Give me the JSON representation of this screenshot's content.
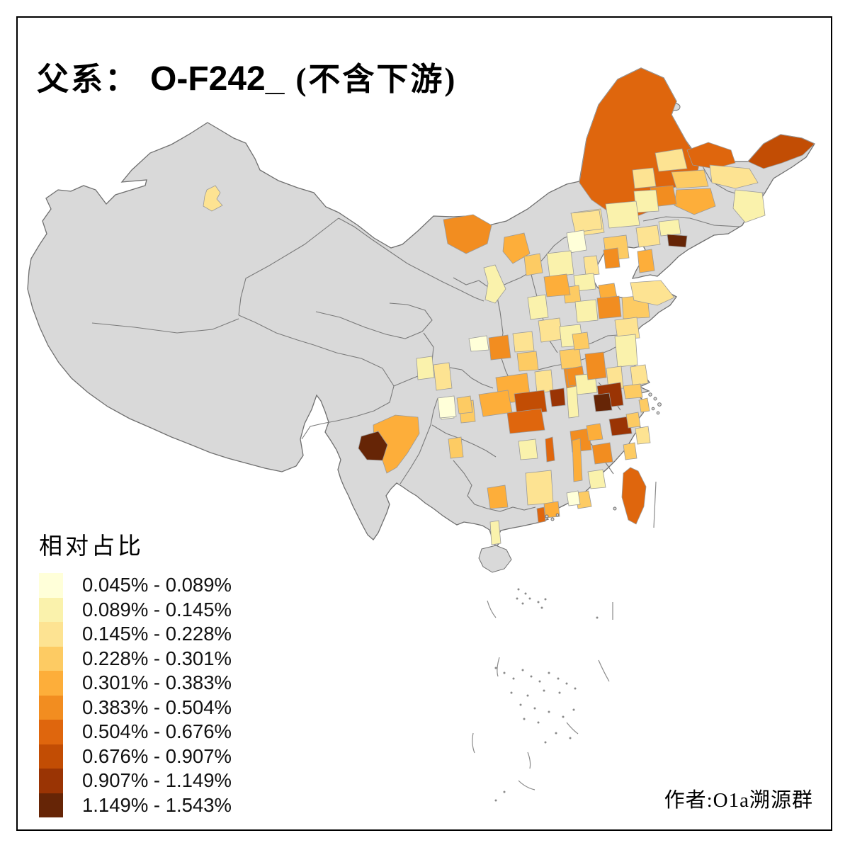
{
  "title": {
    "family_line_label": "父系：",
    "haplogroup": "O-F242_",
    "qualifier": "(不含下游)"
  },
  "legend": {
    "title": "相对占比",
    "classes": [
      {
        "label": "0.045% - 0.089%",
        "color": "#FFFFD9"
      },
      {
        "label": "0.089% - 0.145%",
        "color": "#FAF2AC"
      },
      {
        "label": "0.145% - 0.228%",
        "color": "#FDE392"
      },
      {
        "label": "0.228% - 0.301%",
        "color": "#FDCB63"
      },
      {
        "label": "0.301% - 0.383%",
        "color": "#FDAE3A"
      },
      {
        "label": "0.383% - 0.504%",
        "color": "#F28D20"
      },
      {
        "label": "0.504% - 0.676%",
        "color": "#DF660D"
      },
      {
        "label": "0.676% - 0.907%",
        "color": "#C24D04"
      },
      {
        "label": "0.907% - 1.149%",
        "color": "#9A3404"
      },
      {
        "label": "1.149% - 1.543%",
        "color": "#662506"
      }
    ]
  },
  "attribution": "作者:O1a溯源群",
  "map": {
    "land_fill": "#D9D9D9",
    "coast_stroke": "#6F6F6F",
    "province_stroke": "#7A7A7A",
    "region_stroke": "#9A9A9A",
    "sea_mark_color": "#8A8A8A",
    "frame_color": "#000000",
    "regions": {
      "hulunbuir": 7,
      "fuyuan": 8,
      "yichun": 7,
      "mudanjiang": 3,
      "yanbian": 2,
      "suihua": 3,
      "harbin": 4,
      "jilin": 5,
      "changchun": 6,
      "songyuan": 2,
      "baicheng": 3,
      "chifeng": 3,
      "tongliao": 2,
      "chaoyang": 4,
      "shenyang": 3,
      "fushun": 2,
      "yingkou": 5,
      "dandong": 10,
      "qinhuangdao": 6,
      "bayannur": 6,
      "zhangjiakou": 5,
      "datong": 4,
      "chengde": 3,
      "beijing": 1,
      "baoding": 2,
      "tianjin": 3,
      "cangzhou": 2,
      "hengshui": 4,
      "shijiazhuang": 5,
      "taiyuan": 3,
      "jinzhong": 2,
      "changzhi": 4,
      "anyang": 6,
      "yinchuan": 2,
      "lanzhou": 2,
      "mianyang": 3,
      "shihezi": 3,
      "dongying": 5,
      "zibo": 6,
      "weifang": 4,
      "yantai": 3,
      "jinan": 2,
      "linyi": 3,
      "heze": 2,
      "sanmenxia": 1,
      "luoyang": 6,
      "zhengzhou": 3,
      "xuzhou": 4,
      "xuchang": 4,
      "chuzhou": 6,
      "nanyang": 5,
      "jingmen": 8,
      "jingzhou": 9,
      "yichang": 7,
      "wuhan": 6,
      "huanggang": 2,
      "xinyang": 3,
      "yancheng": 2,
      "nantong": 3,
      "suzhou": 4,
      "nanjing": 3,
      "hefei": 2,
      "xuancheng": 9,
      "huzhou": 10,
      "jinhua": 9,
      "shaoxing": 4,
      "taizhou": 3,
      "ningbo": 4,
      "wenzhou": 4,
      "nanchang": 6,
      "shangrao": 6,
      "jingdezhen": 5,
      "ganzhou": 7,
      "nanping": 5,
      "fuzhou": 2,
      "quanzhou": 4,
      "yueyang": 4,
      "changsha": 1,
      "zigong": 4,
      "chenzhou": 2,
      "guilin": 5,
      "jiangmen": 7,
      "foshan": 5,
      "shaoguan": 3,
      "meizhou": 1,
      "chongqing": 5,
      "chengdu": 1,
      "deyang": 4,
      "kunming": 5,
      "dali": 10,
      "taiwan": 7,
      "leizhou": 2
    }
  }
}
